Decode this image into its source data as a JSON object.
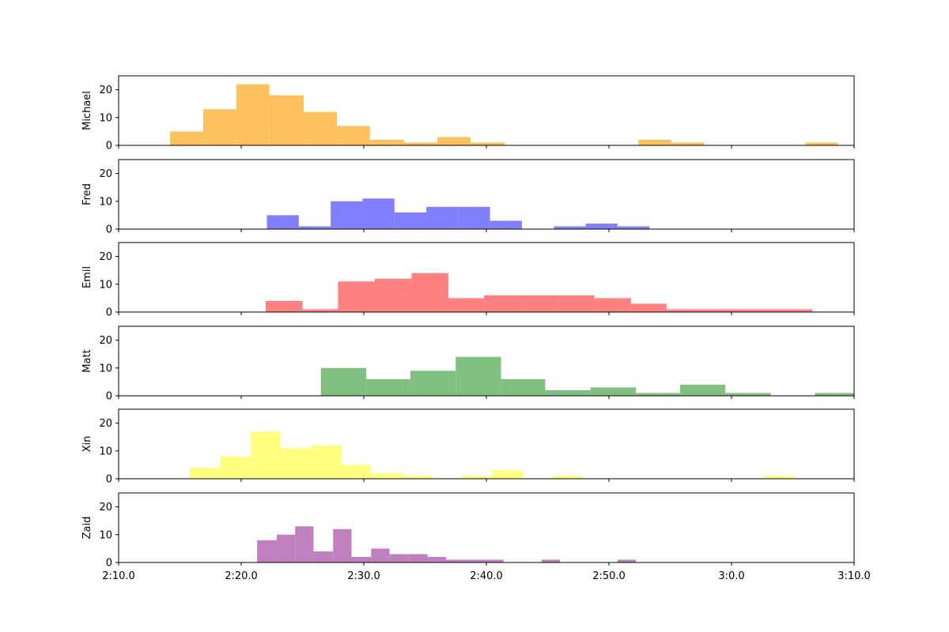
{
  "chart_data": {
    "type": "bar",
    "subtype": "stacked-histogram-panels",
    "xlim": [
      130,
      190
    ],
    "ylim": [
      0,
      25
    ],
    "x_ticks": [
      {
        "value": 130,
        "label": "2:10.0"
      },
      {
        "value": 140,
        "label": "2:20.0"
      },
      {
        "value": 150,
        "label": "2:30.0"
      },
      {
        "value": 160,
        "label": "2:40.0"
      },
      {
        "value": 170,
        "label": "2:50.0"
      },
      {
        "value": 180,
        "label": "3:0.0"
      },
      {
        "value": 190,
        "label": "3:10.0"
      }
    ],
    "y_ticks": [
      {
        "value": 0,
        "label": "0"
      },
      {
        "value": 10,
        "label": "10"
      },
      {
        "value": 20,
        "label": "20"
      }
    ],
    "grid": false,
    "series": [
      {
        "name": "Michael",
        "color": "#fcc25e",
        "bins": [
          {
            "start": 134.2,
            "end": 136.9,
            "count": 5
          },
          {
            "start": 136.9,
            "end": 139.6,
            "count": 13
          },
          {
            "start": 139.6,
            "end": 142.3,
            "count": 22
          },
          {
            "start": 142.3,
            "end": 145.1,
            "count": 18
          },
          {
            "start": 145.1,
            "end": 147.8,
            "count": 12
          },
          {
            "start": 147.8,
            "end": 150.5,
            "count": 7
          },
          {
            "start": 150.5,
            "end": 153.3,
            "count": 2
          },
          {
            "start": 153.3,
            "end": 156.0,
            "count": 1
          },
          {
            "start": 156.0,
            "end": 158.7,
            "count": 3
          },
          {
            "start": 158.7,
            "end": 161.5,
            "count": 1
          },
          {
            "start": 172.4,
            "end": 175.1,
            "count": 2
          },
          {
            "start": 175.1,
            "end": 177.8,
            "count": 1
          },
          {
            "start": 186.0,
            "end": 188.7,
            "count": 1
          }
        ]
      },
      {
        "name": "Fred",
        "color": "#8080ff",
        "bins": [
          {
            "start": 142.1,
            "end": 144.7,
            "count": 5
          },
          {
            "start": 144.7,
            "end": 147.3,
            "count": 1
          },
          {
            "start": 147.3,
            "end": 149.9,
            "count": 10
          },
          {
            "start": 149.9,
            "end": 152.5,
            "count": 11
          },
          {
            "start": 152.5,
            "end": 155.1,
            "count": 6
          },
          {
            "start": 155.1,
            "end": 157.7,
            "count": 8
          },
          {
            "start": 157.7,
            "end": 160.3,
            "count": 8
          },
          {
            "start": 160.3,
            "end": 162.9,
            "count": 3
          },
          {
            "start": 165.5,
            "end": 168.1,
            "count": 1
          },
          {
            "start": 168.1,
            "end": 170.7,
            "count": 2
          },
          {
            "start": 170.7,
            "end": 173.3,
            "count": 1
          }
        ]
      },
      {
        "name": "Emil",
        "color": "#ff8080",
        "bins": [
          {
            "start": 142.0,
            "end": 145.0,
            "count": 4
          },
          {
            "start": 145.0,
            "end": 147.9,
            "count": 1
          },
          {
            "start": 147.9,
            "end": 150.9,
            "count": 11
          },
          {
            "start": 150.9,
            "end": 153.9,
            "count": 12
          },
          {
            "start": 153.9,
            "end": 156.9,
            "count": 14
          },
          {
            "start": 156.9,
            "end": 159.8,
            "count": 5
          },
          {
            "start": 159.8,
            "end": 162.8,
            "count": 6
          },
          {
            "start": 162.8,
            "end": 165.8,
            "count": 6
          },
          {
            "start": 165.8,
            "end": 168.8,
            "count": 6
          },
          {
            "start": 168.8,
            "end": 171.8,
            "count": 5
          },
          {
            "start": 171.8,
            "end": 174.7,
            "count": 3
          },
          {
            "start": 174.7,
            "end": 177.7,
            "count": 1
          },
          {
            "start": 177.7,
            "end": 180.7,
            "count": 1
          },
          {
            "start": 180.7,
            "end": 183.7,
            "count": 1
          },
          {
            "start": 183.7,
            "end": 186.6,
            "count": 1
          }
        ]
      },
      {
        "name": "Matt",
        "color": "#80c080",
        "bins": [
          {
            "start": 146.5,
            "end": 150.2,
            "count": 10
          },
          {
            "start": 150.2,
            "end": 153.8,
            "count": 6
          },
          {
            "start": 153.8,
            "end": 157.5,
            "count": 9
          },
          {
            "start": 157.5,
            "end": 161.2,
            "count": 14
          },
          {
            "start": 161.2,
            "end": 164.8,
            "count": 6
          },
          {
            "start": 164.8,
            "end": 168.5,
            "count": 2
          },
          {
            "start": 168.5,
            "end": 172.2,
            "count": 3
          },
          {
            "start": 172.2,
            "end": 175.8,
            "count": 1
          },
          {
            "start": 175.8,
            "end": 179.5,
            "count": 4
          },
          {
            "start": 179.5,
            "end": 183.2,
            "count": 1
          },
          {
            "start": 186.8,
            "end": 190.0,
            "count": 1
          }
        ]
      },
      {
        "name": "Xin",
        "color": "#ffff80",
        "bins": [
          {
            "start": 135.8,
            "end": 138.3,
            "count": 4
          },
          {
            "start": 138.3,
            "end": 140.8,
            "count": 8
          },
          {
            "start": 140.8,
            "end": 143.2,
            "count": 17
          },
          {
            "start": 143.2,
            "end": 145.7,
            "count": 11
          },
          {
            "start": 145.7,
            "end": 148.2,
            "count": 12
          },
          {
            "start": 148.2,
            "end": 150.6,
            "count": 5
          },
          {
            "start": 150.6,
            "end": 153.1,
            "count": 2
          },
          {
            "start": 153.1,
            "end": 155.6,
            "count": 1
          },
          {
            "start": 158.0,
            "end": 160.5,
            "count": 1
          },
          {
            "start": 160.5,
            "end": 163.0,
            "count": 3
          },
          {
            "start": 165.4,
            "end": 167.9,
            "count": 1
          },
          {
            "start": 182.7,
            "end": 185.2,
            "count": 1
          }
        ]
      },
      {
        "name": "Zaid",
        "color": "#c080c0",
        "bins": [
          {
            "start": 141.3,
            "end": 142.9,
            "count": 8
          },
          {
            "start": 142.9,
            "end": 144.4,
            "count": 10
          },
          {
            "start": 144.4,
            "end": 145.9,
            "count": 13
          },
          {
            "start": 145.9,
            "end": 147.5,
            "count": 4
          },
          {
            "start": 147.5,
            "end": 149.0,
            "count": 12
          },
          {
            "start": 149.0,
            "end": 150.6,
            "count": 2
          },
          {
            "start": 150.6,
            "end": 152.1,
            "count": 5
          },
          {
            "start": 152.1,
            "end": 153.7,
            "count": 3
          },
          {
            "start": 153.7,
            "end": 155.2,
            "count": 3
          },
          {
            "start": 155.2,
            "end": 156.7,
            "count": 2
          },
          {
            "start": 156.7,
            "end": 158.3,
            "count": 1
          },
          {
            "start": 158.3,
            "end": 159.8,
            "count": 1
          },
          {
            "start": 159.8,
            "end": 161.4,
            "count": 1
          },
          {
            "start": 164.5,
            "end": 166.0,
            "count": 1
          },
          {
            "start": 170.7,
            "end": 172.2,
            "count": 1
          }
        ]
      }
    ]
  }
}
